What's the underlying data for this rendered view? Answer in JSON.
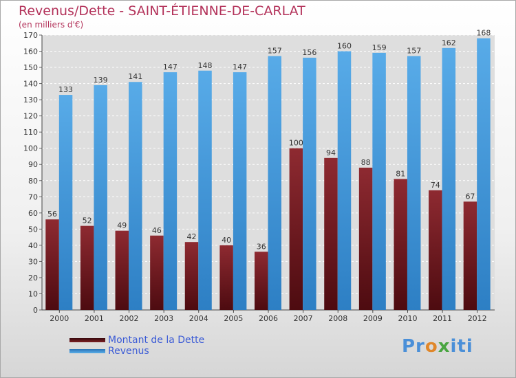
{
  "chart_data": {
    "type": "bar",
    "title": "Revenus/Dette - SAINT-ÉTIENNE-DE-CARLAT",
    "subtitle": "(en milliers d'€)",
    "categories": [
      "2000",
      "2001",
      "2002",
      "2003",
      "2004",
      "2005",
      "2006",
      "2007",
      "2008",
      "2009",
      "2010",
      "2011",
      "2012"
    ],
    "series": [
      {
        "name": "Montant de la Dette",
        "color": "#7b1e24",
        "values": [
          56,
          52,
          49,
          46,
          42,
          40,
          36,
          100,
          94,
          88,
          81,
          74,
          67
        ]
      },
      {
        "name": "Revenus",
        "color": "#3f97dc",
        "values": [
          133,
          139,
          141,
          147,
          148,
          147,
          157,
          156,
          160,
          159,
          157,
          162,
          168
        ]
      }
    ],
    "ylim": [
      0,
      170
    ],
    "ytick_step": 10,
    "grid": true,
    "legend_position": "bottom-left"
  },
  "branding": {
    "logo_text": "Proxiti"
  }
}
